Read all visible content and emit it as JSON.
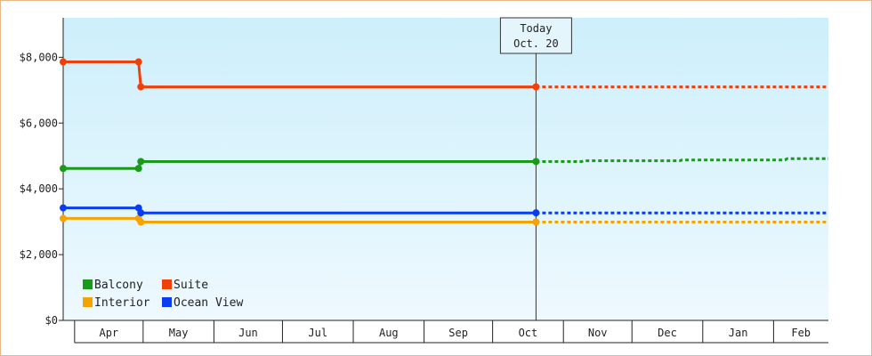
{
  "chart_data": {
    "type": "line",
    "title": "",
    "xlabel": "",
    "ylabel": "",
    "ylim": [
      0,
      9200
    ],
    "yticks": [
      0,
      2000,
      4000,
      6000,
      8000
    ],
    "ytick_labels": [
      "$0",
      "$2,000",
      "$4,000",
      "$6,000",
      "$8,000"
    ],
    "x_range": [
      "2019-03-27",
      "2020-02-25"
    ],
    "months": [
      {
        "label": "Apr",
        "start": "2019-04-01"
      },
      {
        "label": "May",
        "start": "2019-05-01"
      },
      {
        "label": "Jun",
        "start": "2019-06-01"
      },
      {
        "label": "Jul",
        "start": "2019-07-01"
      },
      {
        "label": "Aug",
        "start": "2019-08-01"
      },
      {
        "label": "Sep",
        "start": "2019-09-01"
      },
      {
        "label": "Oct",
        "start": "2019-10-01"
      },
      {
        "label": "Nov",
        "start": "2019-11-01"
      },
      {
        "label": "Dec",
        "start": "2019-12-01"
      },
      {
        "label": "Jan",
        "start": "2020-01-01"
      },
      {
        "label": "Feb",
        "start": "2020-02-01"
      }
    ],
    "today": {
      "date": "2019-10-20",
      "line1": "Today",
      "line2": "Oct. 20"
    },
    "legend_position": "bottom-left",
    "series": [
      {
        "name": "Balcony",
        "color": "#1a9a1a",
        "points": [
          {
            "x": "2019-03-27",
            "y": 4620
          },
          {
            "x": "2019-04-29",
            "y": 4620
          },
          {
            "x": "2019-04-30",
            "y": 4830
          },
          {
            "x": "2019-10-20",
            "y": 4830
          }
        ],
        "projection": [
          {
            "x": "2019-10-20",
            "y": 4830
          },
          {
            "x": "2019-11-09",
            "y": 4830
          },
          {
            "x": "2019-11-10",
            "y": 4855
          },
          {
            "x": "2019-12-22",
            "y": 4855
          },
          {
            "x": "2019-12-23",
            "y": 4880
          },
          {
            "x": "2020-02-06",
            "y": 4880
          },
          {
            "x": "2020-02-07",
            "y": 4920
          },
          {
            "x": "2020-02-25",
            "y": 4920
          }
        ]
      },
      {
        "name": "Suite",
        "color": "#f0400a",
        "points": [
          {
            "x": "2019-03-27",
            "y": 7860
          },
          {
            "x": "2019-04-29",
            "y": 7860
          },
          {
            "x": "2019-04-30",
            "y": 7100
          },
          {
            "x": "2019-10-20",
            "y": 7100
          }
        ],
        "projection": [
          {
            "x": "2019-10-20",
            "y": 7100
          },
          {
            "x": "2020-02-25",
            "y": 7100
          }
        ]
      },
      {
        "name": "Interior",
        "color": "#f5a300",
        "points": [
          {
            "x": "2019-03-27",
            "y": 3100
          },
          {
            "x": "2019-04-29",
            "y": 3100
          },
          {
            "x": "2019-04-30",
            "y": 2990
          },
          {
            "x": "2019-10-20",
            "y": 2990
          }
        ],
        "projection": [
          {
            "x": "2019-10-20",
            "y": 2990
          },
          {
            "x": "2020-02-25",
            "y": 2990
          }
        ]
      },
      {
        "name": "Ocean View",
        "color": "#0a3cf0",
        "points": [
          {
            "x": "2019-03-27",
            "y": 3420
          },
          {
            "x": "2019-04-29",
            "y": 3420
          },
          {
            "x": "2019-04-30",
            "y": 3270
          },
          {
            "x": "2019-10-20",
            "y": 3270
          }
        ],
        "projection": [
          {
            "x": "2019-10-20",
            "y": 3270
          },
          {
            "x": "2020-02-25",
            "y": 3270
          }
        ]
      }
    ],
    "colors": {
      "plot_top": "#cdeffb",
      "plot_bottom": "#eef9fe",
      "frame_border": "#e7b98a",
      "axis": "#222222"
    }
  }
}
